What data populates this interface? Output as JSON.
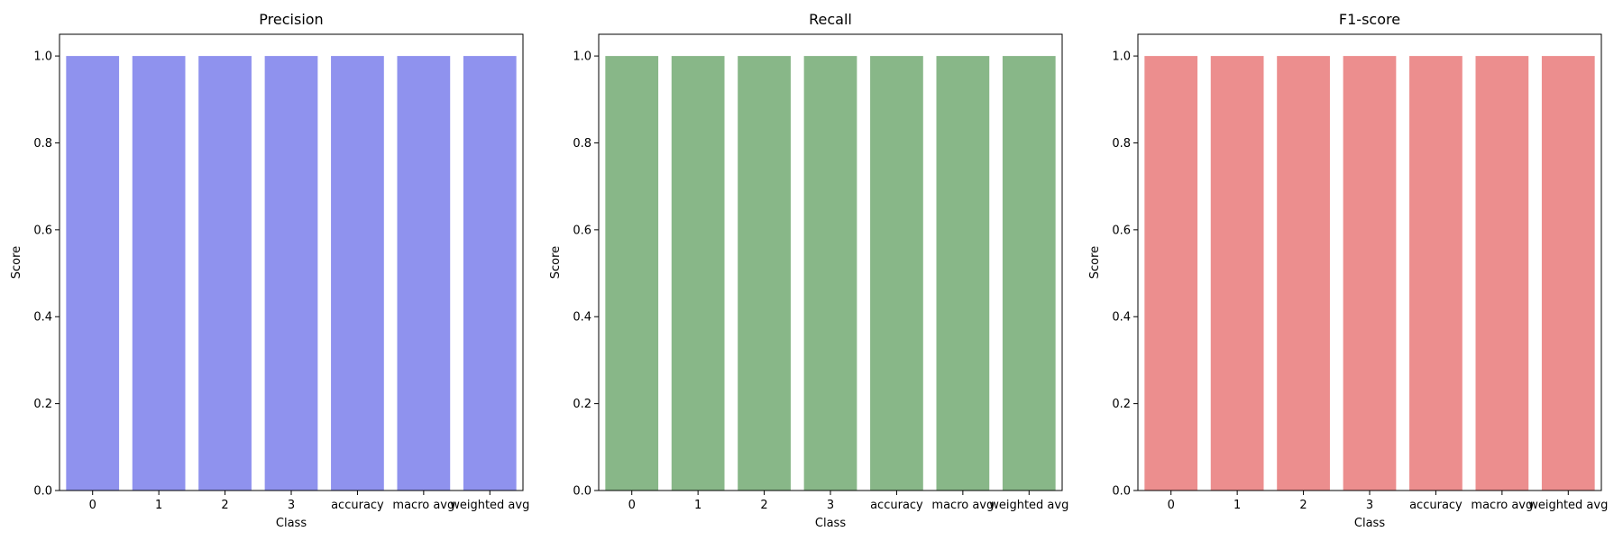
{
  "chart_data": [
    {
      "type": "bar",
      "title": "Precision",
      "xlabel": "Class",
      "ylabel": "Score",
      "categories": [
        "0",
        "1",
        "2",
        "3",
        "accuracy",
        "macro avg",
        "weighted avg"
      ],
      "values": [
        1.0,
        1.0,
        1.0,
        1.0,
        1.0,
        1.0,
        1.0
      ],
      "ylim": [
        0,
        1.05
      ],
      "yticks": [
        "0.0",
        "0.2",
        "0.4",
        "0.6",
        "0.8",
        "1.0"
      ],
      "color": "#8f92ee",
      "grid": false
    },
    {
      "type": "bar",
      "title": "Recall",
      "xlabel": "Class",
      "ylabel": "Score",
      "categories": [
        "0",
        "1",
        "2",
        "3",
        "accuracy",
        "macro avg",
        "weighted avg"
      ],
      "values": [
        1.0,
        1.0,
        1.0,
        1.0,
        1.0,
        1.0,
        1.0
      ],
      "ylim": [
        0,
        1.05
      ],
      "yticks": [
        "0.0",
        "0.2",
        "0.4",
        "0.6",
        "0.8",
        "1.0"
      ],
      "color": "#88b788",
      "grid": false
    },
    {
      "type": "bar",
      "title": "F1-score",
      "xlabel": "Class",
      "ylabel": "Score",
      "categories": [
        "0",
        "1",
        "2",
        "3",
        "accuracy",
        "macro avg",
        "weighted avg"
      ],
      "values": [
        1.0,
        1.0,
        1.0,
        1.0,
        1.0,
        1.0,
        1.0
      ],
      "ylim": [
        0,
        1.05
      ],
      "yticks": [
        "0.0",
        "0.2",
        "0.4",
        "0.6",
        "0.8",
        "1.0"
      ],
      "color": "#ec8e8e",
      "grid": false
    }
  ]
}
